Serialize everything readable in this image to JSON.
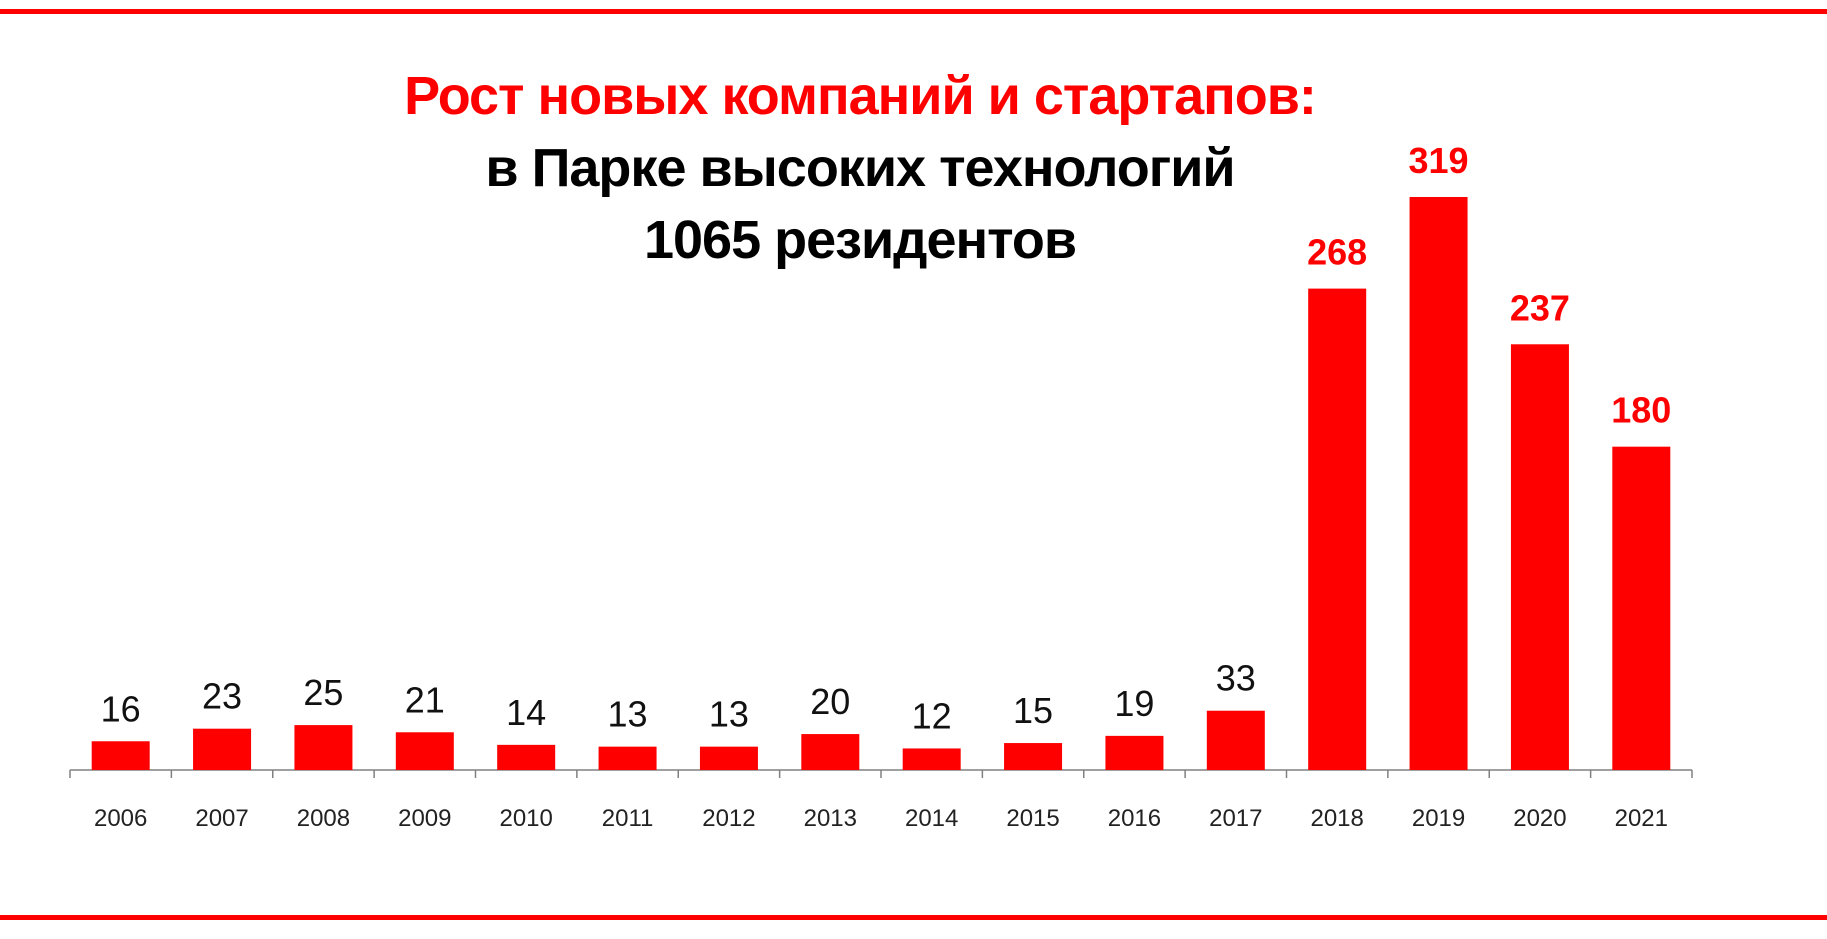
{
  "colors": {
    "accent": "#ff0000",
    "text": "#000000",
    "axis": "#808080"
  },
  "chart_data": {
    "type": "bar",
    "title": "Рост новых компаний и стартапов:",
    "subtitle": "в Парке высоких технологий",
    "subtitle2": "1065 резидентов",
    "categories": [
      "2006",
      "2007",
      "2008",
      "2009",
      "2010",
      "2011",
      "2012",
      "2013",
      "2014",
      "2015",
      "2016",
      "2017",
      "2018",
      "2019",
      "2020",
      "2021"
    ],
    "values": [
      16,
      23,
      25,
      21,
      14,
      13,
      13,
      20,
      12,
      15,
      19,
      33,
      268,
      319,
      237,
      180
    ],
    "data_labels": [
      "16",
      "23",
      "25",
      "21",
      "14",
      "13",
      "13",
      "20",
      "12",
      "15",
      "19",
      "33",
      "268",
      "319",
      "237",
      "180"
    ],
    "highlighted": [
      false,
      false,
      false,
      false,
      false,
      false,
      false,
      false,
      false,
      false,
      false,
      false,
      true,
      true,
      true,
      true
    ],
    "ylim": [
      0,
      319
    ],
    "grid": false,
    "legend": "none",
    "bar_color": "#ff0000",
    "xlabel": "",
    "ylabel": ""
  }
}
